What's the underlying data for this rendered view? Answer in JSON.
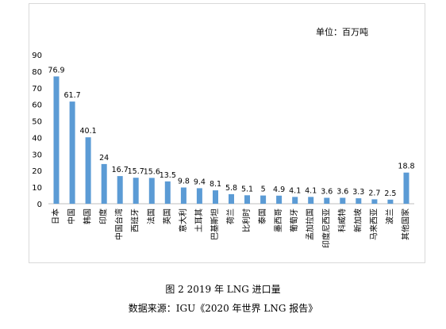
{
  "figure_caption": "图 2    2019 年 LNG 进口量",
  "source_caption": "数据来源：IGU《2020 年世界 LNG 报告》",
  "chart_data": {
    "type": "bar",
    "unit_label": "单位：百万吨",
    "categories": [
      "日本",
      "中国",
      "韩国",
      "印度",
      "中国台湾",
      "西班牙",
      "法国",
      "英国",
      "意大利",
      "土耳其",
      "巴基斯坦",
      "荷兰",
      "比利时",
      "泰国",
      "墨西哥",
      "葡萄牙",
      "孟加拉国",
      "印度尼西亚",
      "科威特",
      "新加坡",
      "马来西亚",
      "波兰",
      "其他国家"
    ],
    "values": [
      76.9,
      61.7,
      40.1,
      24,
      16.7,
      15.7,
      15.6,
      13.5,
      9.8,
      9.4,
      8.1,
      5.8,
      5.1,
      5,
      4.9,
      4.1,
      4.1,
      3.6,
      3.6,
      3.3,
      2.7,
      2.5,
      18.8
    ],
    "value_labels": [
      "76.9",
      "61.7",
      "40.1",
      "24",
      "16.7",
      "15.7",
      "15.6",
      "13.5",
      "9.8",
      "9.4",
      "8.1",
      "5.8",
      "5.1",
      "5",
      "4.9",
      "4.1",
      "4.1",
      "3.6",
      "3.6",
      "3.3",
      "2.7",
      "2.5",
      "18.8"
    ],
    "y_ticks": [
      "90",
      "80",
      "70",
      "60",
      "50",
      "40",
      "30",
      "20",
      "10",
      "0"
    ],
    "ylim": [
      0,
      90
    ],
    "grid": false,
    "bar_color": "#5b9bd5",
    "title": "",
    "xlabel": "",
    "ylabel": ""
  }
}
